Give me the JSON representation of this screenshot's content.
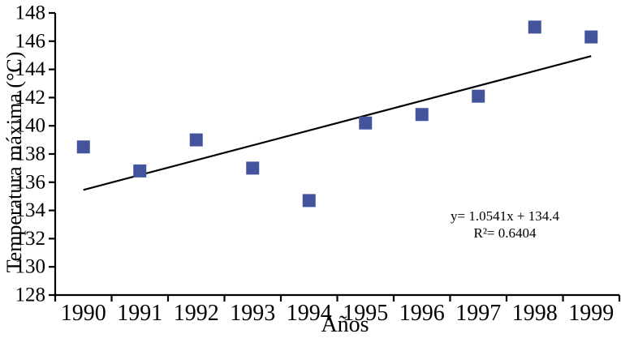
{
  "chart_data": {
    "type": "scatter",
    "title": "",
    "xlabel": "Años",
    "ylabel": "Temperatura máxima (°C)",
    "x_categories": [
      "1990",
      "1991",
      "1992",
      "1993",
      "1994",
      "1995",
      "1996",
      "1997",
      "1998",
      "1999"
    ],
    "series": [
      {
        "name": "Temperatura máxima",
        "marker": "square",
        "color": "#43539C",
        "values": [
          138.5,
          136.8,
          139.0,
          137.0,
          134.7,
          140.2,
          140.8,
          142.1,
          147.0,
          146.3
        ]
      }
    ],
    "ylim": [
      128,
      148
    ],
    "ytick_step": 2,
    "ytick_labels": [
      "128",
      "130",
      "132",
      "134",
      "136",
      "138",
      "140",
      "142",
      "144",
      "146",
      "148"
    ],
    "grid": false,
    "legend": "none",
    "axis_color": "#000000",
    "background_color": "#FFFFFF",
    "trendline": {
      "slope": 1.0541,
      "intercept": 134.4,
      "x_range": [
        1,
        10
      ],
      "color": "#000000",
      "equation_label": "y= 1.0541x + 134.4",
      "r2_label": "R²= 0.6404"
    }
  }
}
